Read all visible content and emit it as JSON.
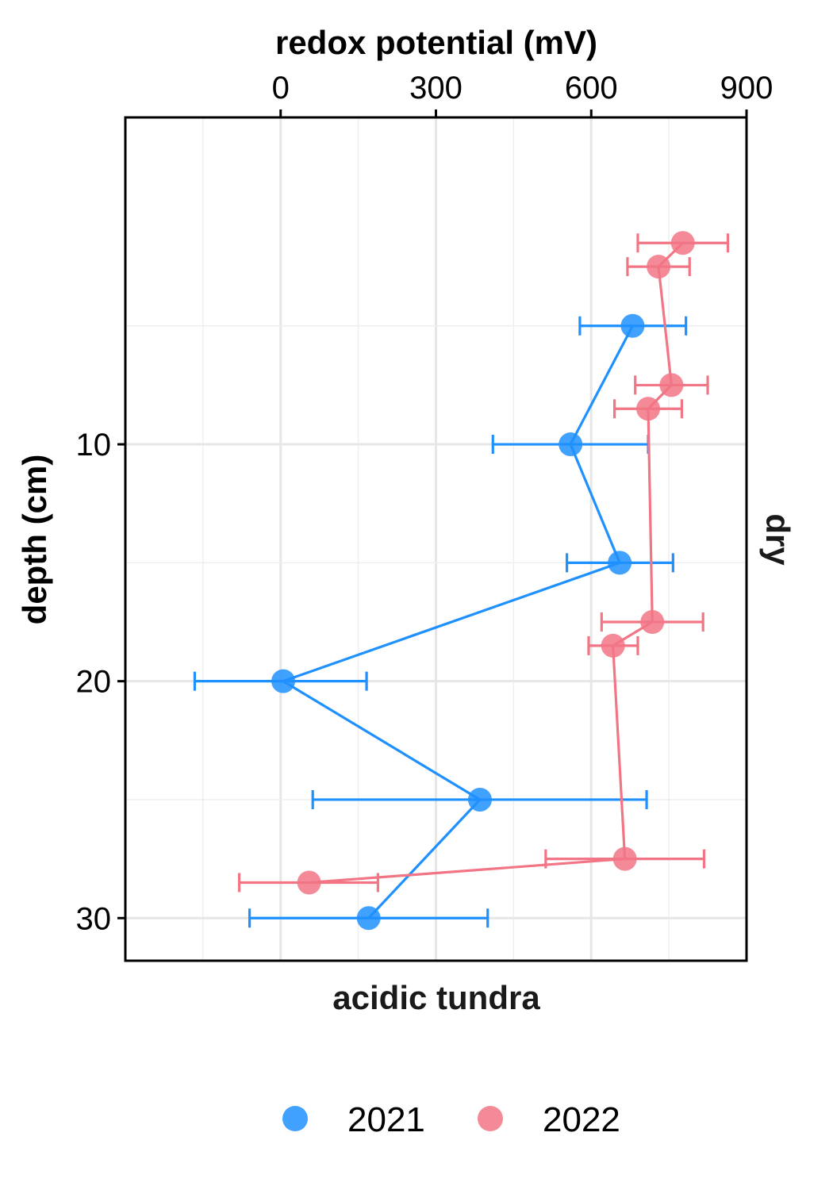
{
  "chart_data": {
    "type": "line",
    "orientation": "horizontal-profile",
    "xlabel": "redox potential (mV)",
    "ylabel": "depth (cm)",
    "xlim": [
      -300,
      900
    ],
    "ylim": [
      31.8,
      -3.8
    ],
    "y_reversed": true,
    "x_axis_position": "top",
    "x_ticks": [
      0,
      300,
      600,
      900
    ],
    "y_ticks": [
      10,
      20,
      30
    ],
    "x_tick_labels": [
      "0",
      "300",
      "600",
      "900"
    ],
    "y_tick_labels": [
      "10",
      "20",
      "30"
    ],
    "grid": true,
    "facet_bottom": "acidic tundra",
    "facet_right": "dry",
    "legend_position": "bottom",
    "series": [
      {
        "name": "2021",
        "color": "#1E90FF",
        "points": [
          {
            "depth": 5,
            "value": 680,
            "err_low": 578,
            "err_high": 783
          },
          {
            "depth": 10,
            "value": 560,
            "err_low": 410,
            "err_high": 710
          },
          {
            "depth": 15,
            "value": 655,
            "err_low": 553,
            "err_high": 758
          },
          {
            "depth": 20,
            "value": 5,
            "err_low": -166,
            "err_high": 166
          },
          {
            "depth": 25,
            "value": 385,
            "err_low": 62,
            "err_high": 707
          },
          {
            "depth": 30,
            "value": 170,
            "err_low": -60,
            "err_high": 400
          }
        ]
      },
      {
        "name": "2022",
        "color": "#F27585",
        "points": [
          {
            "depth": 1.5,
            "value": 777,
            "err_low": 690,
            "err_high": 864
          },
          {
            "depth": 2.5,
            "value": 730,
            "err_low": 670,
            "err_high": 790
          },
          {
            "depth": 7.5,
            "value": 755,
            "err_low": 685,
            "err_high": 825
          },
          {
            "depth": 8.5,
            "value": 710,
            "err_low": 645,
            "err_high": 775
          },
          {
            "depth": 17.5,
            "value": 718,
            "err_low": 620,
            "err_high": 816
          },
          {
            "depth": 18.5,
            "value": 642,
            "err_low": 595,
            "err_high": 690
          },
          {
            "depth": 27.5,
            "value": 665,
            "err_low": 512,
            "err_high": 818
          },
          {
            "depth": 28.5,
            "value": 55,
            "err_low": -80,
            "err_high": 188
          }
        ]
      }
    ]
  }
}
